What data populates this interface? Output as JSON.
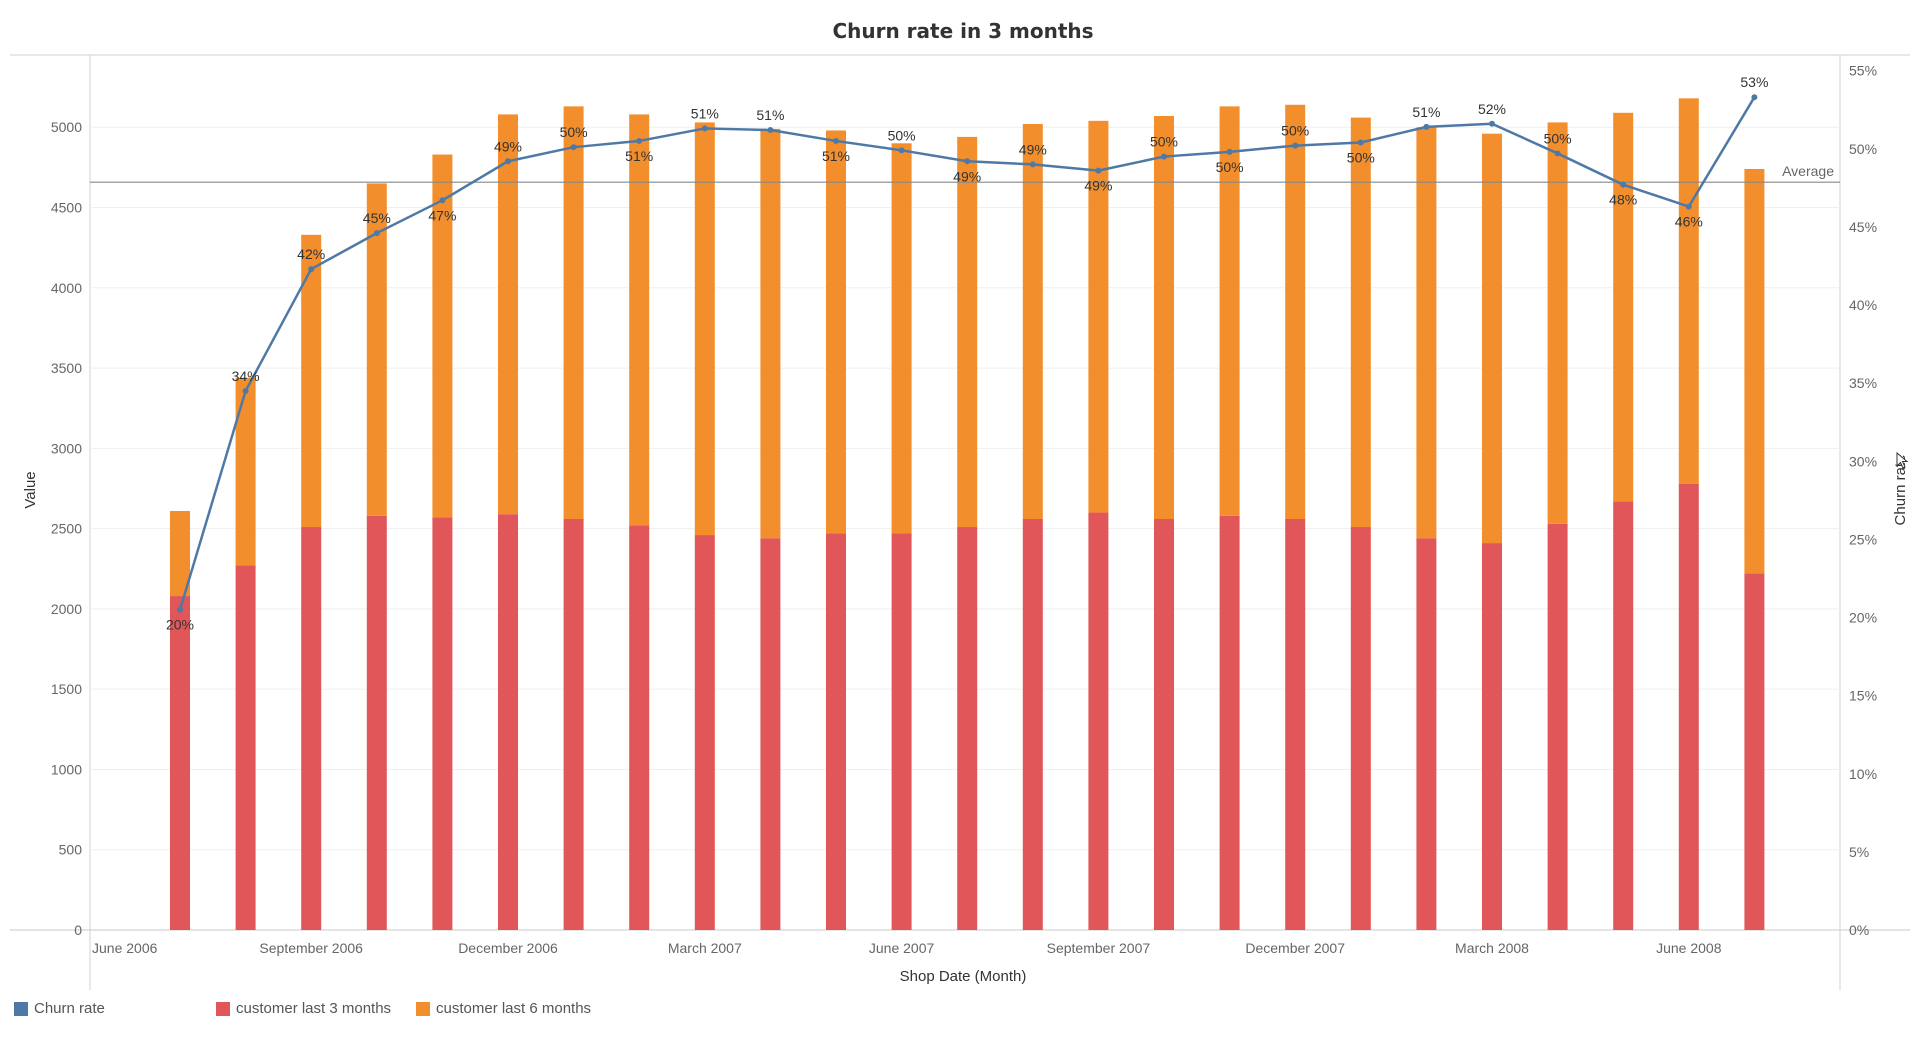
{
  "chart_data": {
    "type": "bar",
    "title": "Churn rate in 3 months",
    "xlabel": "Shop Date (Month)",
    "ylabel": "Value",
    "ylabel_right": "Churn rate",
    "ylim": [
      0,
      5450
    ],
    "ylim_right": [
      0,
      0.56
    ],
    "y_ticks": [
      0,
      500,
      1000,
      1500,
      2000,
      2500,
      3000,
      3500,
      4000,
      4500,
      5000
    ],
    "y_ticks_right": [
      "0%",
      "5%",
      "10%",
      "15%",
      "20%",
      "25%",
      "30%",
      "35%",
      "40%",
      "45%",
      "50%",
      "55%"
    ],
    "x_ticks": [
      "June 2006",
      "September 2006",
      "December 2006",
      "March 2007",
      "June 2007",
      "September 2007",
      "December 2007",
      "March 2008",
      "June 2008"
    ],
    "categories": [
      "2006-07",
      "2006-08",
      "2006-09",
      "2006-10",
      "2006-11",
      "2006-12",
      "2007-01",
      "2007-02",
      "2007-03",
      "2007-04",
      "2007-05",
      "2007-06",
      "2007-07",
      "2007-08",
      "2007-09",
      "2007-10",
      "2007-11",
      "2007-12",
      "2008-01",
      "2008-02",
      "2008-03",
      "2008-04",
      "2008-05",
      "2008-06",
      "2008-07"
    ],
    "series": [
      {
        "name": "customer last 3 months",
        "color": "#e15759",
        "stacked": true,
        "values": [
          2080,
          2270,
          2510,
          2580,
          2570,
          2590,
          2560,
          2520,
          2460,
          2440,
          2470,
          2470,
          2510,
          2560,
          2600,
          2560,
          2580,
          2560,
          2510,
          2440,
          2410,
          2530,
          2670,
          2780,
          2220
        ]
      },
      {
        "name": "customer last 6 months",
        "color": "#f28e2b",
        "stacked": true,
        "values": [
          530,
          1170,
          1820,
          2070,
          2260,
          2490,
          2570,
          2560,
          2570,
          2550,
          2510,
          2430,
          2430,
          2460,
          2440,
          2510,
          2550,
          2580,
          2550,
          2560,
          2550,
          2500,
          2420,
          2400,
          2520
        ]
      },
      {
        "name": "Churn rate",
        "color": "#4e79a7",
        "type": "line",
        "axis": "right",
        "values": [
          0.205,
          0.345,
          0.423,
          0.446,
          0.467,
          0.492,
          0.501,
          0.505,
          0.513,
          0.512,
          0.505,
          0.499,
          0.492,
          0.49,
          0.486,
          0.495,
          0.498,
          0.502,
          0.504,
          0.514,
          0.516,
          0.497,
          0.477,
          0.463,
          0.533
        ]
      }
    ],
    "line_labels": [
      "20%",
      "34%",
      "42%",
      "45%",
      "47%",
      "49%",
      "50%",
      "51%",
      "51%",
      "51%",
      "51%",
      "50%",
      "49%",
      "49%",
      "49%",
      "50%",
      "50%",
      "50%",
      "50%",
      "51%",
      "52%",
      "50%",
      "48%",
      "46%",
      "53%"
    ],
    "label_positions": [
      "below",
      "above",
      "above",
      "above",
      "below",
      "above",
      "above",
      "below",
      "above",
      "above",
      "below",
      "above",
      "below",
      "above",
      "below",
      "above",
      "below",
      "above",
      "below",
      "above",
      "above",
      "above",
      "below",
      "below",
      "above"
    ],
    "reference_line": {
      "label": "Average",
      "value": 0.4786
    },
    "grid": true,
    "legend_position": "bottom-left"
  },
  "legend": {
    "items": [
      {
        "label": "Churn rate",
        "color": "#4e79a7"
      },
      {
        "label": "customer last 3 months",
        "color": "#e15759"
      },
      {
        "label": "customer last 6 months",
        "color": "#f28e2b"
      }
    ]
  }
}
